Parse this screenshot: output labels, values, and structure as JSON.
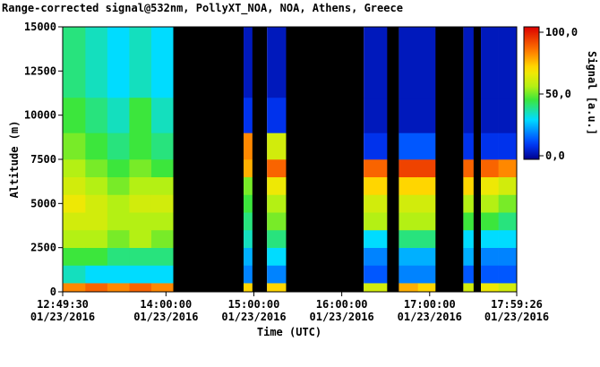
{
  "chart_data": {
    "type": "heatmap",
    "title": "Range-corrected signal@532nm, PollyXT_NOA, NOA, Athens, Greece",
    "xlabel": "Time (UTC)",
    "ylabel": "Altitude (m)",
    "colorbar_label": "Signal [a.u.]",
    "x_tick_date": "01/23/2016",
    "xlim": [
      769.5,
      1079.43
    ],
    "xticks": [
      {
        "value": 769.5,
        "label": "12:49:30"
      },
      {
        "value": 840,
        "label": "14:00:00"
      },
      {
        "value": 900,
        "label": "15:00:00"
      },
      {
        "value": 960,
        "label": "16:00:00"
      },
      {
        "value": 1020,
        "label": "17:00:00"
      },
      {
        "value": 1079.43,
        "label": "17:59:26"
      }
    ],
    "ylim": [
      0,
      15000
    ],
    "yticks": [
      0,
      2500,
      5000,
      7500,
      10000,
      12500,
      15000
    ],
    "zlim": [
      0,
      100
    ],
    "zticks": [
      {
        "value": 0,
        "label": "0,0"
      },
      {
        "value": 50,
        "label": "50,0"
      },
      {
        "value": 100,
        "label": "100,0"
      }
    ],
    "x_edges": [
      769.5,
      785,
      800,
      815,
      830,
      845,
      893,
      899,
      909,
      922,
      975,
      991,
      999,
      1012,
      1024,
      1043,
      1050,
      1055,
      1067,
      1079.43
    ],
    "y_edges": [
      0,
      500,
      1500,
      2500,
      3500,
      4500,
      5500,
      6500,
      7500,
      9000,
      11000,
      15000
    ],
    "z": [
      [
        80,
        35,
        45,
        55,
        60,
        65,
        60,
        55,
        50,
        45,
        40
      ],
      [
        85,
        30,
        45,
        55,
        60,
        60,
        55,
        50,
        45,
        40,
        35
      ],
      [
        80,
        30,
        40,
        50,
        55,
        55,
        50,
        45,
        40,
        35,
        30
      ],
      [
        85,
        30,
        40,
        55,
        55,
        60,
        55,
        50,
        45,
        45,
        35
      ],
      [
        80,
        30,
        40,
        50,
        55,
        60,
        55,
        45,
        40,
        35,
        30
      ],
      null,
      [
        70,
        20,
        25,
        35,
        40,
        45,
        50,
        75,
        80,
        10,
        5
      ],
      null,
      [
        70,
        20,
        30,
        40,
        50,
        55,
        65,
        85,
        60,
        10,
        5
      ],
      null,
      [
        60,
        15,
        20,
        30,
        55,
        60,
        70,
        85,
        10,
        5,
        5
      ],
      null,
      [
        75,
        20,
        25,
        40,
        55,
        60,
        70,
        90,
        15,
        5,
        5
      ],
      [
        70,
        20,
        25,
        40,
        55,
        60,
        70,
        90,
        15,
        5,
        5
      ],
      null,
      [
        60,
        15,
        25,
        30,
        45,
        55,
        70,
        85,
        10,
        5,
        5
      ],
      null,
      [
        65,
        15,
        20,
        30,
        45,
        55,
        65,
        85,
        10,
        5,
        5
      ],
      [
        60,
        15,
        20,
        30,
        40,
        50,
        60,
        80,
        10,
        5,
        5
      ]
    ]
  }
}
